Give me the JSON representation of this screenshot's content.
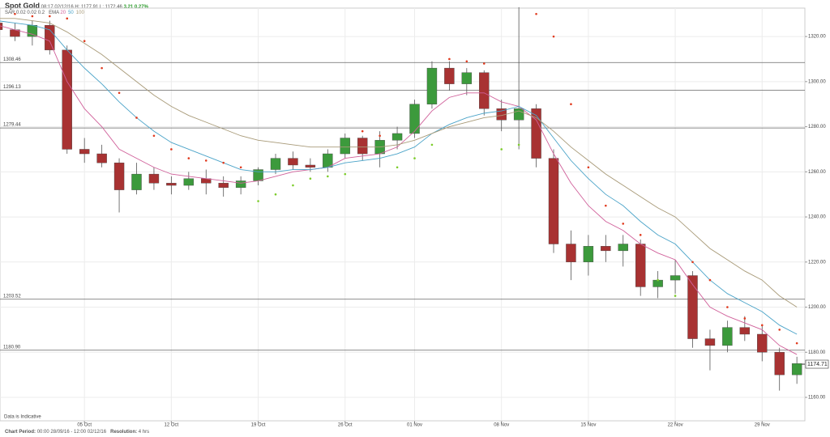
{
  "header": {
    "title": "Spot Gold",
    "time": "08:17 02/12/16",
    "high": "H: 1177.91",
    "low": "L: 1172.46",
    "change": "3.21 0.27%",
    "indicators": [
      {
        "name": "SAR",
        "params": "0.02 0.02 0.2"
      },
      {
        "name": "EMA",
        "params": "20 50 100"
      }
    ]
  },
  "chart_data": {
    "type": "candlestick",
    "xlim": [
      0.14,
      46.46
    ],
    "ylim": [
      1149.6,
      1332.6
    ],
    "xticks": [
      {
        "value": 5,
        "label": "05 Oct"
      },
      {
        "value": 10,
        "label": "12 Oct"
      },
      {
        "value": 15,
        "label": "19 Oct"
      },
      {
        "value": 20,
        "label": "26 Oct"
      },
      {
        "value": 24,
        "label": "01 Nov"
      },
      {
        "value": 29,
        "label": "08 Nov"
      },
      {
        "value": 34,
        "label": "15 Nov"
      },
      {
        "value": 39,
        "label": "22 Nov"
      },
      {
        "value": 44,
        "label": "29 Nov"
      }
    ],
    "yticks": [
      {
        "value": 1160,
        "label": "1160.00"
      },
      {
        "value": 1180,
        "label": "1180.00"
      },
      {
        "value": 1200,
        "label": "1200.00"
      },
      {
        "value": 1220,
        "label": "1220.00"
      },
      {
        "value": 1240,
        "label": "1240.00"
      },
      {
        "value": 1260,
        "label": "1260.00"
      },
      {
        "value": 1280,
        "label": "1280.00"
      },
      {
        "value": 1300,
        "label": "1300.00"
      },
      {
        "value": 1320,
        "label": "1320.00"
      }
    ],
    "grid": true,
    "up_color": "#3c9a3c",
    "down_color": "#a83232",
    "candles": {
      "open": [
        1326,
        1323,
        1320,
        1325,
        1314,
        1270,
        1268,
        1264,
        1252,
        1259,
        1255,
        1254,
        1257,
        1255,
        1253,
        1256,
        1261,
        1266,
        1263,
        1262,
        1268,
        1275,
        1268,
        1274,
        1277,
        1290,
        1306,
        1299,
        1304,
        1288,
        1283,
        1288,
        1266,
        1228,
        1220,
        1227,
        1225,
        1228,
        1209,
        1212,
        1214,
        1186,
        1183,
        1191,
        1188,
        1180,
        1170
      ],
      "high": [
        1328,
        1326,
        1327,
        1327,
        1316,
        1275,
        1272,
        1266,
        1264,
        1262,
        1258,
        1260,
        1261,
        1258,
        1258,
        1262,
        1268,
        1269,
        1266,
        1270,
        1277,
        1276,
        1278,
        1280,
        1292,
        1309,
        1309,
        1306,
        1305,
        1292,
        1333,
        1290,
        1270,
        1234,
        1232,
        1232,
        1232,
        1230,
        1216,
        1221,
        1216,
        1190,
        1194,
        1196,
        1192,
        1182,
        1178
      ],
      "low": [
        1321,
        1318,
        1316,
        1312,
        1268,
        1264,
        1262,
        1242,
        1250,
        1252,
        1250,
        1252,
        1250,
        1249,
        1250,
        1254,
        1259,
        1261,
        1260,
        1260,
        1266,
        1265,
        1262,
        1270,
        1275,
        1288,
        1296,
        1294,
        1285,
        1278,
        1270,
        1262,
        1224,
        1212,
        1214,
        1220,
        1218,
        1205,
        1204,
        1206,
        1182,
        1172,
        1180,
        1185,
        1176,
        1163,
        1166
      ],
      "close": [
        1323,
        1320,
        1325,
        1314,
        1270,
        1268,
        1264,
        1252,
        1259,
        1255,
        1254,
        1257,
        1255,
        1253,
        1256,
        1261,
        1266,
        1263,
        1262,
        1268,
        1275,
        1268,
        1274,
        1277,
        1290,
        1306,
        1299,
        1304,
        1288,
        1283,
        1288,
        1266,
        1228,
        1220,
        1227,
        1225,
        1228,
        1209,
        1212,
        1214,
        1186,
        1183,
        1191,
        1188,
        1180,
        1170,
        1175
      ]
    },
    "series": [
      {
        "name": "20",
        "color": "#d0609a",
        "values": [
          1325,
          1323,
          1321,
          1318,
          1300,
          1288,
          1280,
          1270,
          1266,
          1262,
          1259,
          1258,
          1257,
          1256,
          1255,
          1256,
          1258,
          1260,
          1261,
          1262,
          1266,
          1267,
          1268,
          1271,
          1278,
          1287,
          1293,
          1295,
          1295,
          1291,
          1289,
          1283,
          1268,
          1255,
          1245,
          1238,
          1234,
          1228,
          1224,
          1221,
          1210,
          1200,
          1196,
          1193,
          1190,
          1183,
          1179
        ]
      },
      {
        "name": "50",
        "color": "#4aa3c8",
        "values": [
          1327,
          1326,
          1325,
          1323,
          1314,
          1306,
          1299,
          1291,
          1284,
          1278,
          1273,
          1270,
          1267,
          1264,
          1261,
          1260,
          1260,
          1261,
          1261,
          1262,
          1264,
          1265,
          1266,
          1268,
          1271,
          1277,
          1281,
          1284,
          1286,
          1287,
          1289,
          1285,
          1275,
          1265,
          1257,
          1250,
          1245,
          1238,
          1232,
          1228,
          1220,
          1212,
          1206,
          1202,
          1198,
          1192,
          1188
        ]
      },
      {
        "name": "100",
        "color": "#a89a78",
        "values": [
          1328,
          1328,
          1327,
          1326,
          1322,
          1317,
          1312,
          1306,
          1300,
          1294,
          1289,
          1285,
          1282,
          1279,
          1276,
          1274,
          1273,
          1272,
          1271,
          1271,
          1271,
          1271,
          1271,
          1272,
          1274,
          1277,
          1280,
          1282,
          1284,
          1285,
          1287,
          1284,
          1278,
          1271,
          1265,
          1259,
          1254,
          1249,
          1244,
          1240,
          1233,
          1226,
          1221,
          1216,
          1212,
          1205,
          1200
        ]
      }
    ],
    "sar": {
      "above_color": "#e03a1e",
      "below_color": "#7ccc2a",
      "values": [
        1331,
        1330,
        1329,
        1329,
        1328,
        1318,
        1306,
        1295,
        1284,
        1276,
        1270,
        1266,
        1265,
        1264,
        1262,
        1247,
        1250,
        1254,
        1257,
        1258,
        1259,
        1278,
        1276,
        1262,
        1266,
        1272,
        1310,
        1309,
        1308,
        1270,
        1272,
        1330,
        1320,
        1290,
        1262,
        1245,
        1237,
        1232,
        1212,
        1205,
        1220,
        1212,
        1200,
        1195,
        1192,
        1190,
        1184
      ]
    },
    "levels": [
      {
        "value": 1308.46,
        "label": "1308.46"
      },
      {
        "value": 1296.13,
        "label": "1296.13"
      },
      {
        "value": 1279.44,
        "label": "1279.44"
      },
      {
        "value": 1203.52,
        "label": "1203.52"
      },
      {
        "value": 1180.9,
        "label": "1180.90"
      }
    ],
    "last_price": {
      "value": 1174.71,
      "label": "1174.71"
    },
    "note": "Data is Indicative"
  },
  "footer": {
    "period_label": "Chart Period:",
    "period": "00:00 28/09/16 - 12:00 02/12/16",
    "resolution_label": "Resolution:",
    "resolution": "4 hrs"
  }
}
